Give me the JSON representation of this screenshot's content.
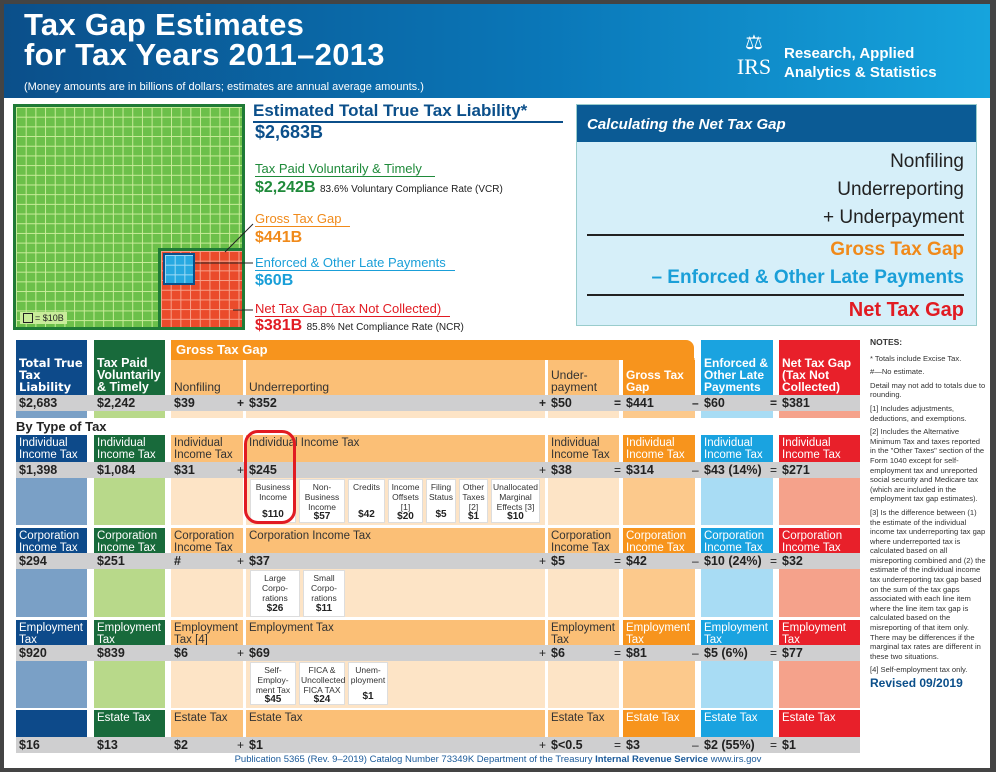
{
  "header": {
    "title_line1": "Tax Gap Estimates",
    "title_line2": "for Tax Years 2011–2013",
    "subtitle": "(Money amounts are in billions of dollars; estimates are annual average amounts.)",
    "logo_text": "IRS",
    "brand_line1": "Research, Applied",
    "brand_line2": "Analytics & Statistics"
  },
  "summary": {
    "liability_label": "Estimated Total True Tax Liability*",
    "liability_value": "$2,683B",
    "paid_label": "Tax Paid Voluntarily & Timely",
    "paid_value": "$2,242B",
    "vcr": "83.6% Voluntary Compliance Rate (VCR)",
    "gross_label": "Gross Tax Gap",
    "gross_value": "$441B",
    "enforced_label": "Enforced & Other Late Payments",
    "enforced_value": "$60B",
    "net_label": "Net Tax Gap (Tax Not Collected)",
    "net_value": "$381B",
    "ncr": "85.8% Net Compliance Rate (NCR)",
    "legend": "= $10B"
  },
  "calc": {
    "title": "Calculating the Net Tax Gap",
    "l1": "Nonfiling",
    "l2": "Underreporting",
    "l3": "+ Underpayment",
    "l4": "Gross Tax Gap",
    "l5": "– Enforced & Other Late Payments",
    "l6": "Net Tax Gap"
  },
  "colors": {
    "dark_blue": "#0d4a8a",
    "dark_green": "#186a3b",
    "orange": "#f7941d",
    "light_orange": "#fbbf76",
    "blue": "#1aa3e0",
    "red": "#e8202a"
  },
  "table": {
    "group_label": "Gross Tax Gap",
    "headers": [
      "Total True Tax Liability",
      "Tax Paid Voluntarily & Timely",
      "Nonfiling",
      "Underreporting",
      "Under-payment",
      "Gross Tax Gap",
      "Enforced & Other Late Payments",
      "Net Tax Gap (Tax Not Collected)"
    ],
    "totals": [
      "$2,683",
      "$2,242",
      "$39",
      "$352",
      "$50",
      "$441",
      "$60",
      "$381"
    ],
    "ops": [
      "",
      "",
      "",
      "+",
      "+",
      "=",
      "–",
      "="
    ],
    "by_type_label": "By Type of Tax",
    "rows": [
      {
        "labels": [
          "Individual Income Tax",
          "Individual Income Tax",
          "Individual Income Tax",
          "Individual Income Tax",
          "Individual Income Tax",
          "Individual Income Tax",
          "Individual Income Tax",
          "Individual Income Tax"
        ],
        "values": [
          "$1,398",
          "$1,084",
          "$31",
          "$245",
          "$38",
          "$314",
          "$43 (14%)",
          "$271"
        ],
        "details": [
          {
            "label": "Business Income",
            "value": "$110"
          },
          {
            "label": "Non-Business Income",
            "value": "$57"
          },
          {
            "label": "Credits",
            "value": "$42"
          },
          {
            "label": "Income Offsets [1]",
            "value": "$20"
          },
          {
            "label": "Filing Status",
            "value": "$5"
          },
          {
            "label": "Other Taxes [2]",
            "value": "$1"
          },
          {
            "label": "Unallocated Marginal Effects [3]",
            "value": "$10"
          }
        ]
      },
      {
        "labels": [
          "Corporation Income Tax",
          "Corporation Income Tax",
          "Corporation Income Tax",
          "Corporation Income Tax",
          "Corporation Income Tax",
          "Corporation Income Tax",
          "Corporation Income Tax",
          "Corporation Income Tax"
        ],
        "values": [
          "$294",
          "$251",
          "#",
          "$37",
          "$5",
          "$42",
          "$10 (24%)",
          "$32"
        ],
        "details": [
          {
            "label": "Large Corpo-rations",
            "value": "$26"
          },
          {
            "label": "Small Corpo-rations",
            "value": "$11"
          }
        ]
      },
      {
        "labels": [
          "Employment Tax",
          "Employment Tax",
          "Employment Tax [4]",
          "Employment Tax",
          "Employment Tax",
          "Employment Tax",
          "Employment Tax",
          "Employment Tax"
        ],
        "values": [
          "$920",
          "$839",
          "$6",
          "$69",
          "$6",
          "$81",
          "$5 (6%)",
          "$77"
        ],
        "details": [
          {
            "label": "Self-Employ-ment Tax",
            "value": "$45"
          },
          {
            "label": "FICA & Uncollected FICA TAX",
            "value": "$24"
          },
          {
            "label": "Unem-ployment",
            "value": "$1"
          }
        ]
      },
      {
        "labels": [
          "",
          "Estate Tax",
          "Estate Tax",
          "Estate Tax",
          "Estate Tax",
          "Estate Tax",
          "Estate Tax",
          "Estate Tax"
        ],
        "values": [
          "$16",
          "$13",
          "$2",
          "$1",
          "$<0.5",
          "$3",
          "$2 (55%)",
          "$1"
        ],
        "details": []
      }
    ]
  },
  "notes": {
    "title": "NOTES:",
    "items": [
      "* Totals include Excise Tax.",
      "#—No estimate.",
      "Detail may not add to totals due to rounding.",
      "[1] Includes adjustments, deductions, and exemptions.",
      "[2] Includes the Alternative Minimum Tax and taxes reported in the \"Other Taxes\" section of the Form 1040 except for self-employment tax and unreported social security and Medicare tax (which are included in the employment tax gap estimates).",
      "[3] Is the difference between (1) the estimate of the individual income tax underreporting tax gap where underreported tax is calculated based on all misreporting combined and (2) the estimate of the individual income tax underreporting tax gap based on the sum of the tax gaps associated with each line item where the line item tax gap is calculated based on the misreporting of that item only. There may be differences if the marginal tax rates are different in these two situations.",
      "[4] Self-employment tax only."
    ],
    "revised": "Revised 09/2019"
  },
  "footer": {
    "pub": "Publication 5365 (Rev. 9–2019)  Catalog Number 73349K  Department of the Treasury ",
    "agency": "Internal Revenue Service",
    "url": " www.irs.gov"
  }
}
